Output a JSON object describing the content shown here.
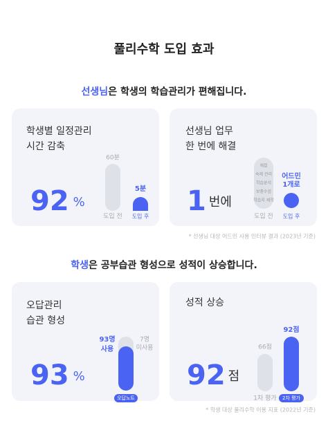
{
  "title": "풀리수학 도입 효과",
  "section1": {
    "heading": {
      "highlight": "선생님",
      "rest": "은 학생의 학습관리가 편해집니다."
    },
    "cards": [
      {
        "title": [
          "학생별 일정관리",
          "시간 감축"
        ],
        "big": "92",
        "unit": "%",
        "before_value": "60분",
        "after_value": "5분",
        "before_label": "도입 전",
        "after_label": "도입 후"
      },
      {
        "title": [
          "선생님 업무",
          "한 번에 해결"
        ],
        "big": "1",
        "unit": "번에",
        "tasks": [
          "채점",
          "숙제 관리",
          "학습분석",
          "보충수업",
          "학습지 제작"
        ],
        "after_value": [
          "어드민",
          "1개로"
        ],
        "before_label": "도입 전",
        "after_label": "도입 후"
      }
    ],
    "footnote": "* 선생님 대상 어드민 사용 인터뷰 결과 (2023년 기준)"
  },
  "section2": {
    "heading": {
      "highlight": "학생",
      "rest": "은 공부습관 형성으로 성적이 상승합니다."
    },
    "cards": [
      {
        "title": [
          "오답관리",
          "습관 형성"
        ],
        "big": "93",
        "unit": "%",
        "used": [
          "93명",
          "사용"
        ],
        "unused": [
          "7명",
          "미사용"
        ],
        "label": "오답노트"
      },
      {
        "title": [
          "성적 상승"
        ],
        "big": "92",
        "unit": "점",
        "first_value": "66점",
        "second_value": "92점",
        "first_label": "1차 평가",
        "second_label": "2차 평가"
      }
    ],
    "footnote": "* 학생 대상 풀리수학 이용 지표 (2022년 기준)"
  }
}
